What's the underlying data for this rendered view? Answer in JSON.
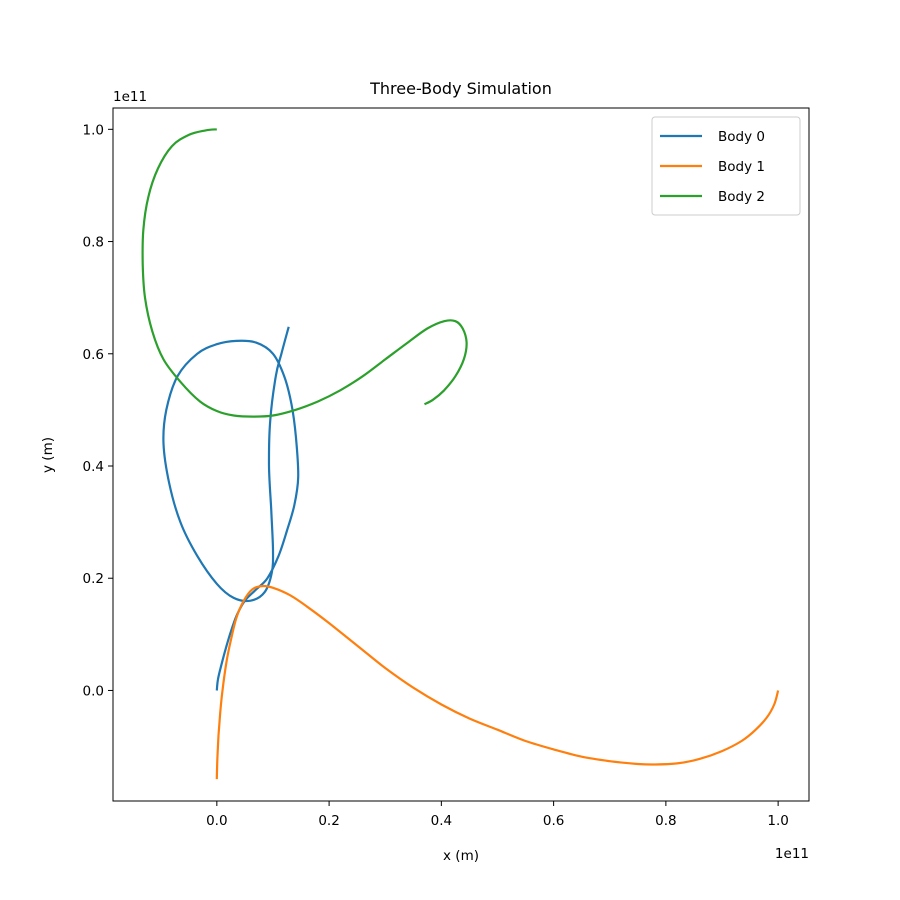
{
  "chart_data": {
    "type": "line",
    "title": "Three-Body Simulation",
    "xlabel": "x (m)",
    "ylabel": "y (m)",
    "x_offset_text": "1e11",
    "y_offset_text": "1e11",
    "xlim": [
      -0.185,
      1.055
    ],
    "ylim": [
      -0.197,
      1.038
    ],
    "xticks": [
      0.0,
      0.2,
      0.4,
      0.6,
      0.8,
      1.0
    ],
    "xtick_labels": [
      "0.0",
      "0.2",
      "0.4",
      "0.6",
      "0.8",
      "1.0"
    ],
    "yticks": [
      0.0,
      0.2,
      0.4,
      0.6,
      0.8,
      1.0
    ],
    "ytick_labels": [
      "0.0",
      "0.2",
      "0.4",
      "0.6",
      "0.8",
      "1.0"
    ],
    "grid": false,
    "legend_position": "top-right",
    "series": [
      {
        "name": "Body 0",
        "color": "#1f77b4",
        "points": [
          [
            0.0,
            0.0
          ],
          [
            0.002,
            0.02
          ],
          [
            0.008,
            0.045
          ],
          [
            0.016,
            0.075
          ],
          [
            0.025,
            0.105
          ],
          [
            0.036,
            0.135
          ],
          [
            0.05,
            0.16
          ],
          [
            0.07,
            0.18
          ],
          [
            0.09,
            0.2
          ],
          [
            0.11,
            0.24
          ],
          [
            0.125,
            0.285
          ],
          [
            0.138,
            0.33
          ],
          [
            0.145,
            0.38
          ],
          [
            0.141,
            0.45
          ],
          [
            0.133,
            0.51
          ],
          [
            0.12,
            0.56
          ],
          [
            0.1,
            0.6
          ],
          [
            0.07,
            0.62
          ],
          [
            0.035,
            0.623
          ],
          [
            0.0,
            0.617
          ],
          [
            -0.035,
            0.6
          ],
          [
            -0.07,
            0.56
          ],
          [
            -0.09,
            0.5
          ],
          [
            -0.095,
            0.44
          ],
          [
            -0.085,
            0.37
          ],
          [
            -0.065,
            0.3
          ],
          [
            -0.035,
            0.24
          ],
          [
            0.0,
            0.19
          ],
          [
            0.03,
            0.165
          ],
          [
            0.06,
            0.16
          ],
          [
            0.085,
            0.175
          ],
          [
            0.098,
            0.21
          ],
          [
            0.1,
            0.25
          ],
          [
            0.097,
            0.32
          ],
          [
            0.093,
            0.4
          ],
          [
            0.095,
            0.48
          ],
          [
            0.105,
            0.56
          ],
          [
            0.115,
            0.6
          ],
          [
            0.128,
            0.648
          ]
        ]
      },
      {
        "name": "Body 1",
        "color": "#ff7f0e",
        "points": [
          [
            0.0,
            -0.158
          ],
          [
            0.001,
            -0.12
          ],
          [
            0.003,
            -0.08
          ],
          [
            0.006,
            -0.04
          ],
          [
            0.01,
            0.0
          ],
          [
            0.017,
            0.05
          ],
          [
            0.025,
            0.09
          ],
          [
            0.035,
            0.13
          ],
          [
            0.048,
            0.16
          ],
          [
            0.063,
            0.18
          ],
          [
            0.08,
            0.186
          ],
          [
            0.1,
            0.183
          ],
          [
            0.13,
            0.17
          ],
          [
            0.16,
            0.15
          ],
          [
            0.2,
            0.12
          ],
          [
            0.25,
            0.08
          ],
          [
            0.3,
            0.04
          ],
          [
            0.35,
            0.005
          ],
          [
            0.4,
            -0.025
          ],
          [
            0.45,
            -0.05
          ],
          [
            0.5,
            -0.07
          ],
          [
            0.55,
            -0.09
          ],
          [
            0.6,
            -0.105
          ],
          [
            0.65,
            -0.118
          ],
          [
            0.7,
            -0.126
          ],
          [
            0.75,
            -0.131
          ],
          [
            0.78,
            -0.132
          ],
          [
            0.82,
            -0.13
          ],
          [
            0.86,
            -0.122
          ],
          [
            0.9,
            -0.108
          ],
          [
            0.935,
            -0.09
          ],
          [
            0.96,
            -0.07
          ],
          [
            0.98,
            -0.048
          ],
          [
            0.993,
            -0.025
          ],
          [
            1.0,
            0.0
          ]
        ]
      },
      {
        "name": "Body 2",
        "color": "#2ca02c",
        "points": [
          [
            0.0,
            1.0
          ],
          [
            -0.02,
            0.998
          ],
          [
            -0.05,
            0.99
          ],
          [
            -0.08,
            0.97
          ],
          [
            -0.105,
            0.93
          ],
          [
            -0.122,
            0.88
          ],
          [
            -0.131,
            0.82
          ],
          [
            -0.132,
            0.76
          ],
          [
            -0.128,
            0.7
          ],
          [
            -0.115,
            0.64
          ],
          [
            -0.095,
            0.59
          ],
          [
            -0.065,
            0.55
          ],
          [
            -0.03,
            0.515
          ],
          [
            0.0,
            0.498
          ],
          [
            0.03,
            0.49
          ],
          [
            0.065,
            0.488
          ],
          [
            0.1,
            0.49
          ],
          [
            0.14,
            0.5
          ],
          [
            0.18,
            0.515
          ],
          [
            0.22,
            0.535
          ],
          [
            0.26,
            0.56
          ],
          [
            0.3,
            0.59
          ],
          [
            0.34,
            0.62
          ],
          [
            0.375,
            0.645
          ],
          [
            0.405,
            0.658
          ],
          [
            0.425,
            0.658
          ],
          [
            0.438,
            0.645
          ],
          [
            0.445,
            0.62
          ],
          [
            0.44,
            0.59
          ],
          [
            0.425,
            0.56
          ],
          [
            0.405,
            0.535
          ],
          [
            0.385,
            0.518
          ],
          [
            0.37,
            0.51
          ]
        ]
      }
    ]
  }
}
